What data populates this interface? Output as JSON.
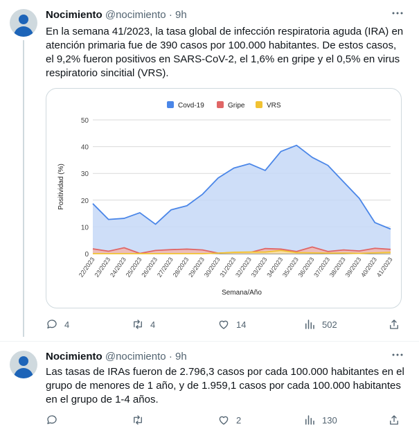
{
  "tweets": [
    {
      "name": "Nocimiento",
      "handle": "@nocimiento",
      "separator": "·",
      "time": "9h",
      "text": "En la semana 41/2023, la tasa global de infección respiratoria aguda (IRA) en atención primaria fue de 390 casos por 100.000 habitantes. De estos casos, el 9,2% fueron positivos en SARS-CoV-2, el 1,6% en gripe y el 0,5% en virus respiratorio sincitial (VRS).",
      "replies": "4",
      "retweets": "4",
      "likes": "14",
      "views": "502"
    },
    {
      "name": "Nocimiento",
      "handle": "@nocimiento",
      "separator": "·",
      "time": "9h",
      "text": "Las tasas de IRAs fueron de 2.796,3 casos por cada 100.000 habitantes en el grupo de menores de 1 año, y de 1.959,1 casos por cada 100.000 habitantes en el grupo de 1-4 años.",
      "replies": "",
      "retweets": "",
      "likes": "2",
      "views": "130"
    }
  ],
  "icons": {
    "reply": "reply-icon",
    "retweet": "retweet-icon",
    "like": "heart-icon",
    "views": "views-icon",
    "share": "share-icon",
    "more": "more-icon"
  },
  "chart_data": {
    "type": "area",
    "categories": [
      "22/2023",
      "23/2023",
      "24/2023",
      "25/2023",
      "26/2023",
      "27/2023",
      "28/2023",
      "29/2023",
      "30/2023",
      "31/2023",
      "32/2023",
      "33/2023",
      "34/2023",
      "35/2023",
      "36/2023",
      "37/2023",
      "38/2023",
      "39/2023",
      "40/2023",
      "41/2023"
    ],
    "series": [
      {
        "name": "Covd-19",
        "color": "#4a86e8",
        "fill": "#c6d8f7",
        "values": [
          18.7,
          12.8,
          13.2,
          15.3,
          11.0,
          16.4,
          17.9,
          22.2,
          28.3,
          32.0,
          33.6,
          31.1,
          38.2,
          40.5,
          36.0,
          33.0,
          26.8,
          20.7,
          11.6,
          9.2
        ]
      },
      {
        "name": "Gripe",
        "color": "#e06666",
        "fill": "#f1b7b0",
        "values": [
          1.8,
          0.9,
          2.2,
          0.1,
          1.2,
          1.5,
          1.7,
          1.4,
          0.2,
          0.4,
          0.4,
          1.9,
          1.7,
          0.8,
          2.5,
          0.8,
          1.4,
          1.0,
          2.0,
          1.6
        ]
      },
      {
        "name": "VRS",
        "color": "#f1c232",
        "fill": "#f9e3a3",
        "values": [
          0.0,
          0.0,
          0.0,
          0.0,
          0.0,
          0.0,
          0.0,
          0.0,
          0.2,
          0.5,
          0.6,
          0.6,
          1.2,
          0.4,
          0.3,
          0.2,
          0.2,
          0.1,
          0.3,
          0.5
        ]
      }
    ],
    "y_ticks": [
      "0",
      "10",
      "20",
      "30",
      "40",
      "50"
    ],
    "ylim": [
      0,
      50
    ],
    "xlabel": "Semana/Año",
    "ylabel": "Positividad (%)",
    "legend_position": "top",
    "grid": true
  }
}
